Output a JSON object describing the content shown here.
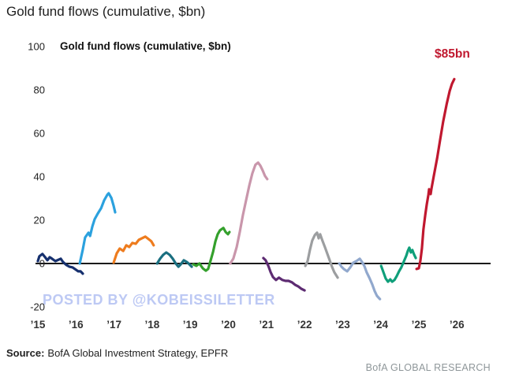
{
  "page_title": "Gold fund flows (cumulative, $bn)",
  "chart": {
    "inner_title": "Gold fund flows (cumulative, $bn)",
    "annotation": {
      "text": "$85bn",
      "color": "#c0182f"
    },
    "watermark": {
      "text": "POSTED BY @KOBEISSILETTER",
      "color": "#bdc9f4"
    },
    "axis_color": "#1a1a1a"
  },
  "chart_data": {
    "type": "line",
    "title": "Gold fund flows (cumulative, $bn)",
    "xlabel": "",
    "ylabel": "$bn",
    "ylim": [
      -25,
      105
    ],
    "xlim": [
      2014.9,
      2026.6
    ],
    "grid": false,
    "legend_position": "none",
    "y_ticks": [
      {
        "label": "100",
        "value": 100
      },
      {
        "label": "80",
        "value": 80
      },
      {
        "label": "60",
        "value": 60
      },
      {
        "label": "40",
        "value": 40
      },
      {
        "label": "20",
        "value": 20
      },
      {
        "label": "0",
        "value": 0
      },
      {
        "label": "-20",
        "value": -20
      }
    ],
    "x_ticks": [
      {
        "label": "’15",
        "year": 2015
      },
      {
        "label": "’16",
        "year": 2016
      },
      {
        "label": "’17",
        "year": 2017
      },
      {
        "label": "’18",
        "year": 2018
      },
      {
        "label": "’19",
        "year": 2019
      },
      {
        "label": "’20",
        "year": 2020
      },
      {
        "label": "’21",
        "year": 2021
      },
      {
        "label": "’22",
        "year": 2022
      },
      {
        "label": "’23",
        "year": 2023
      },
      {
        "label": "’24",
        "year": 2024
      },
      {
        "label": "’25",
        "year": 2025
      },
      {
        "label": "’26",
        "year": 2026
      }
    ],
    "series": [
      {
        "name": "2015",
        "color": "#16306e",
        "points": [
          [
            2015.0,
            1.1
          ],
          [
            2015.04,
            3.3
          ],
          [
            2015.12,
            4.4
          ],
          [
            2015.19,
            2.9
          ],
          [
            2015.25,
            1.5
          ],
          [
            2015.31,
            2.9
          ],
          [
            2015.37,
            2.2
          ],
          [
            2015.46,
            1.1
          ],
          [
            2015.6,
            2.2
          ],
          [
            2015.66,
            0.7
          ],
          [
            2015.75,
            -0.7
          ],
          [
            2015.83,
            -1.5
          ],
          [
            2015.91,
            -1.8
          ],
          [
            2015.97,
            -2.5
          ],
          [
            2016.06,
            -3.6
          ],
          [
            2016.12,
            -3.6
          ],
          [
            2016.18,
            -4.7
          ]
        ]
      },
      {
        "name": "2016",
        "color": "#2ba1de",
        "points": [
          [
            2016.1,
            0
          ],
          [
            2016.18,
            6.5
          ],
          [
            2016.24,
            12
          ],
          [
            2016.33,
            14.2
          ],
          [
            2016.37,
            12.7
          ],
          [
            2016.43,
            17.1
          ],
          [
            2016.49,
            20.4
          ],
          [
            2016.57,
            22.9
          ],
          [
            2016.66,
            25.5
          ],
          [
            2016.74,
            29.1
          ],
          [
            2016.82,
            31.6
          ],
          [
            2016.86,
            32.4
          ],
          [
            2016.93,
            30.2
          ],
          [
            2016.99,
            26.5
          ],
          [
            2017.03,
            23.6
          ]
        ]
      },
      {
        "name": "2017",
        "color": "#ee7c1e",
        "points": [
          [
            2016.99,
            0.4
          ],
          [
            2017.07,
            4.7
          ],
          [
            2017.15,
            6.9
          ],
          [
            2017.24,
            5.8
          ],
          [
            2017.32,
            8.4
          ],
          [
            2017.4,
            7.6
          ],
          [
            2017.48,
            9.5
          ],
          [
            2017.57,
            9.1
          ],
          [
            2017.65,
            10.9
          ],
          [
            2017.73,
            11.6
          ],
          [
            2017.82,
            12.4
          ],
          [
            2017.9,
            11.3
          ],
          [
            2017.98,
            10.2
          ],
          [
            2018.04,
            8.4
          ]
        ]
      },
      {
        "name": "2018",
        "color": "#1a6f80",
        "points": [
          [
            2018.13,
            0
          ],
          [
            2018.21,
            2.2
          ],
          [
            2018.29,
            4
          ],
          [
            2018.37,
            5.1
          ],
          [
            2018.46,
            4
          ],
          [
            2018.54,
            2.2
          ],
          [
            2018.62,
            0
          ],
          [
            2018.69,
            -1.5
          ],
          [
            2018.75,
            -0.4
          ],
          [
            2018.83,
            1.5
          ],
          [
            2018.91,
            0.7
          ],
          [
            2018.98,
            -0.4
          ],
          [
            2019.04,
            -1.5
          ]
        ]
      },
      {
        "name": "2019",
        "color": "#34a02c",
        "points": [
          [
            2019.08,
            -0.4
          ],
          [
            2019.16,
            -1.1
          ],
          [
            2019.24,
            0
          ],
          [
            2019.33,
            -2.2
          ],
          [
            2019.41,
            -3.3
          ],
          [
            2019.47,
            -2.5
          ],
          [
            2019.53,
            1.1
          ],
          [
            2019.6,
            5.5
          ],
          [
            2019.66,
            10.2
          ],
          [
            2019.72,
            13.5
          ],
          [
            2019.78,
            15.3
          ],
          [
            2019.87,
            16.4
          ],
          [
            2019.93,
            14.5
          ],
          [
            2019.99,
            13.5
          ],
          [
            2020.03,
            14.5
          ]
        ]
      },
      {
        "name": "2020",
        "color": "#c996ab",
        "points": [
          [
            2020.05,
            0
          ],
          [
            2020.13,
            2.2
          ],
          [
            2020.22,
            7.6
          ],
          [
            2020.3,
            14.5
          ],
          [
            2020.38,
            22.2
          ],
          [
            2020.47,
            29.5
          ],
          [
            2020.55,
            36
          ],
          [
            2020.63,
            41.5
          ],
          [
            2020.71,
            45.5
          ],
          [
            2020.78,
            46.5
          ],
          [
            2020.84,
            45.1
          ],
          [
            2020.9,
            42.9
          ],
          [
            2020.96,
            40.4
          ],
          [
            2021.02,
            38.9
          ]
        ]
      },
      {
        "name": "2021",
        "color": "#5d2b72",
        "points": [
          [
            2020.92,
            2.5
          ],
          [
            2020.98,
            1.5
          ],
          [
            2021.05,
            -1.1
          ],
          [
            2021.11,
            -4
          ],
          [
            2021.17,
            -6.2
          ],
          [
            2021.25,
            -7.6
          ],
          [
            2021.33,
            -6.5
          ],
          [
            2021.42,
            -7.6
          ],
          [
            2021.5,
            -8
          ],
          [
            2021.58,
            -8
          ],
          [
            2021.67,
            -8.7
          ],
          [
            2021.75,
            -9.8
          ],
          [
            2021.83,
            -10.5
          ],
          [
            2021.91,
            -11.6
          ],
          [
            2022.0,
            -12.4
          ]
        ]
      },
      {
        "name": "2022",
        "color": "#9c9ea0",
        "points": [
          [
            2022.02,
            -1.1
          ],
          [
            2022.08,
            1.1
          ],
          [
            2022.14,
            6.2
          ],
          [
            2022.2,
            10.5
          ],
          [
            2022.27,
            13.1
          ],
          [
            2022.33,
            14.2
          ],
          [
            2022.37,
            11.6
          ],
          [
            2022.41,
            13.5
          ],
          [
            2022.47,
            10.5
          ],
          [
            2022.54,
            7.3
          ],
          [
            2022.6,
            4.4
          ],
          [
            2022.66,
            1.5
          ],
          [
            2022.72,
            -1.5
          ],
          [
            2022.78,
            -4
          ],
          [
            2022.87,
            -6.5
          ]
        ]
      },
      {
        "name": "2023",
        "color": "#91a8cd",
        "points": [
          [
            2022.91,
            0
          ],
          [
            2022.97,
            -1.5
          ],
          [
            2023.03,
            -2.5
          ],
          [
            2023.12,
            -3.6
          ],
          [
            2023.2,
            -1.8
          ],
          [
            2023.28,
            0.4
          ],
          [
            2023.36,
            1.1
          ],
          [
            2023.45,
            2.2
          ],
          [
            2023.51,
            0.7
          ],
          [
            2023.57,
            -1.1
          ],
          [
            2023.63,
            -4
          ],
          [
            2023.71,
            -6.9
          ],
          [
            2023.78,
            -9.8
          ],
          [
            2023.84,
            -12.7
          ],
          [
            2023.9,
            -14.9
          ],
          [
            2023.98,
            -16.4
          ]
        ]
      },
      {
        "name": "2024",
        "color": "#0f9f7a",
        "points": [
          [
            2024.01,
            -1.1
          ],
          [
            2024.07,
            -4
          ],
          [
            2024.13,
            -6.9
          ],
          [
            2024.19,
            -8.4
          ],
          [
            2024.25,
            -7.3
          ],
          [
            2024.3,
            -8.4
          ],
          [
            2024.36,
            -7.6
          ],
          [
            2024.42,
            -5.8
          ],
          [
            2024.48,
            -3.6
          ],
          [
            2024.54,
            -1.8
          ],
          [
            2024.6,
            0.7
          ],
          [
            2024.67,
            3.6
          ],
          [
            2024.71,
            5.8
          ],
          [
            2024.75,
            7.3
          ],
          [
            2024.79,
            5.1
          ],
          [
            2024.83,
            6.2
          ],
          [
            2024.87,
            4.4
          ],
          [
            2024.92,
            2.5
          ]
        ]
      },
      {
        "name": "2025",
        "color": "#c0182f",
        "points": [
          [
            2024.94,
            -2.5
          ],
          [
            2025.0,
            -2.2
          ],
          [
            2025.04,
            1.1
          ],
          [
            2025.08,
            6.9
          ],
          [
            2025.12,
            15.6
          ],
          [
            2025.17,
            22.5
          ],
          [
            2025.21,
            27.3
          ],
          [
            2025.25,
            31.6
          ],
          [
            2025.27,
            34.2
          ],
          [
            2025.31,
            32
          ],
          [
            2025.33,
            34.2
          ],
          [
            2025.39,
            40
          ],
          [
            2025.48,
            48.5
          ],
          [
            2025.56,
            57
          ],
          [
            2025.64,
            65.5
          ],
          [
            2025.73,
            73.5
          ],
          [
            2025.81,
            79.5
          ],
          [
            2025.87,
            82.8
          ],
          [
            2025.93,
            85
          ]
        ]
      }
    ]
  },
  "footer": {
    "source_label": "Source:",
    "source_text": "BofA Global Investment Strategy, EPFR",
    "brand": "BofA GLOBAL RESEARCH"
  }
}
